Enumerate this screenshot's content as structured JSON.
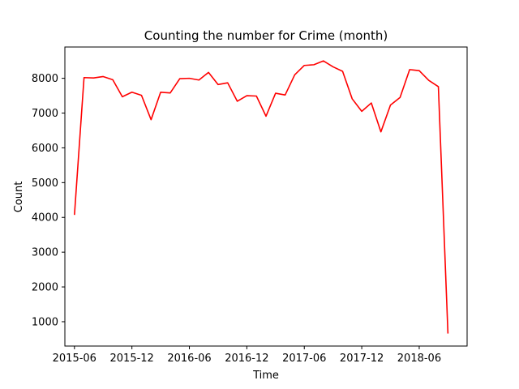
{
  "chart_data": {
    "type": "line",
    "title": "Counting the number for Crime (month)",
    "xlabel": "Time",
    "ylabel": "Count",
    "xlim": [
      "2015-05",
      "2018-11"
    ],
    "ylim": [
      300,
      8900
    ],
    "x_ticks": [
      "2015-06",
      "2015-12",
      "2016-06",
      "2016-12",
      "2017-06",
      "2017-12",
      "2018-06"
    ],
    "y_ticks": [
      1000,
      2000,
      3000,
      4000,
      5000,
      6000,
      7000,
      8000
    ],
    "grid": false,
    "legend": "none",
    "series": [
      {
        "color": "#ff0000",
        "x": [
          "2015-06",
          "2015-07",
          "2015-08",
          "2015-09",
          "2015-10",
          "2015-11",
          "2015-12",
          "2016-01",
          "2016-02",
          "2016-03",
          "2016-04",
          "2016-05",
          "2016-06",
          "2016-07",
          "2016-08",
          "2016-09",
          "2016-10",
          "2016-11",
          "2016-12",
          "2017-01",
          "2017-02",
          "2017-03",
          "2017-04",
          "2017-05",
          "2017-06",
          "2017-07",
          "2017-08",
          "2017-09",
          "2017-10",
          "2017-11",
          "2017-12",
          "2018-01",
          "2018-02",
          "2018-03",
          "2018-04",
          "2018-05",
          "2018-06",
          "2018-07",
          "2018-08",
          "2018-09"
        ],
        "values": [
          4070,
          8020,
          8010,
          8050,
          7960,
          7470,
          7600,
          7510,
          6810,
          7600,
          7580,
          7990,
          8000,
          7950,
          8170,
          7820,
          7870,
          7340,
          7500,
          7490,
          6910,
          7570,
          7520,
          8100,
          8370,
          8390,
          8500,
          8330,
          8200,
          7410,
          7050,
          7290,
          6460,
          7230,
          7450,
          8250,
          8220,
          7940,
          7760,
          660
        ]
      }
    ]
  }
}
